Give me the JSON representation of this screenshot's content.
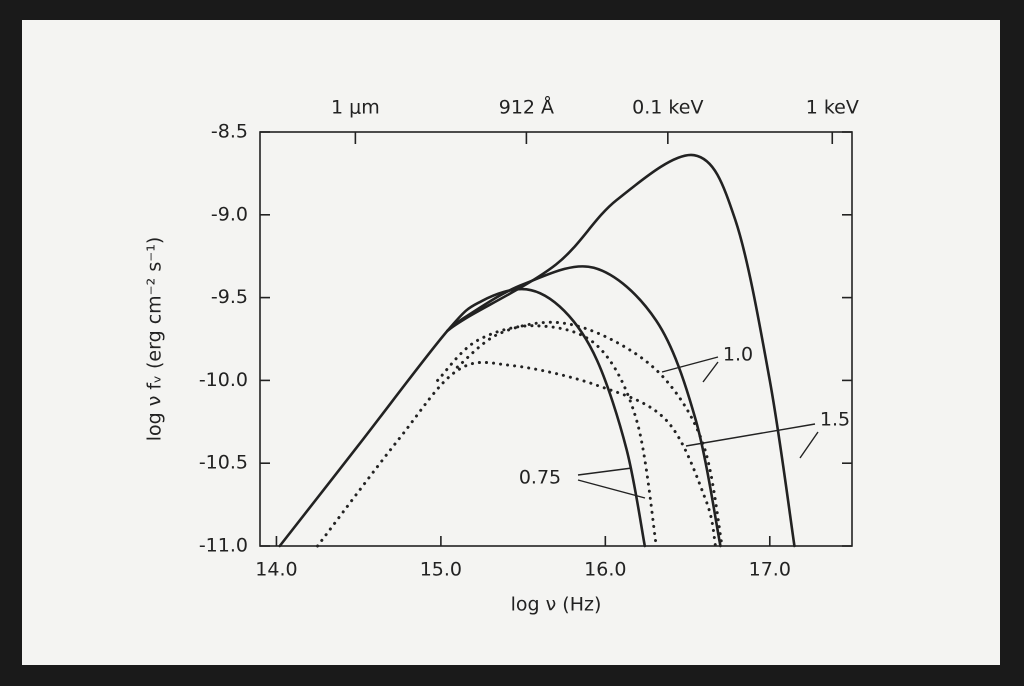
{
  "chart_data": {
    "type": "line",
    "xlabel": "log ν (Hz)",
    "ylabel": "log ν fᵥ (erg cm⁻² s⁻¹)",
    "xlim": [
      13.9,
      17.5
    ],
    "ylim": [
      -11.0,
      -8.5
    ],
    "xticks": [
      {
        "value": 14,
        "label": "14.0"
      },
      {
        "value": 15,
        "label": "15.0"
      },
      {
        "value": 16,
        "label": "16.0"
      },
      {
        "value": 17,
        "label": "17.0"
      }
    ],
    "yticks": [
      -8.5,
      {
        "value": -9,
        "label": "-9.0"
      },
      -9.5,
      {
        "value": -10,
        "label": "-10.0"
      },
      -10.5,
      {
        "value": -11,
        "label": "-11.0"
      }
    ],
    "top_xticks": [
      {
        "value": 14.48,
        "label": "1 μm"
      },
      {
        "value": 15.52,
        "label": "912 Å"
      },
      {
        "value": 16.38,
        "label": "0.1 keV"
      },
      {
        "value": 17.38,
        "label": "1 keV"
      }
    ],
    "series": [
      {
        "name": "0.75",
        "color": "#222",
        "style": "solid",
        "x": [
          14.02,
          14.5,
          15.04,
          15.25,
          15.52,
          15.75,
          15.95,
          16.13,
          16.24
        ],
        "values": [
          -11.0,
          -10.39,
          -9.7,
          -9.52,
          -9.45,
          -9.58,
          -9.88,
          -10.42,
          -11.0
        ]
      },
      {
        "name": "1.0",
        "color": "#222",
        "style": "solid",
        "x": [
          15.04,
          15.16,
          15.5,
          15.93,
          16.31,
          16.55,
          16.7
        ],
        "values": [
          -9.7,
          -9.61,
          -9.42,
          -9.32,
          -9.64,
          -10.24,
          -11.0
        ]
      },
      {
        "name": "1.5",
        "color": "#222",
        "style": "solid",
        "x": [
          15.04,
          15.16,
          15.7,
          16.07,
          16.54,
          16.79,
          17.0,
          17.15
        ],
        "values": [
          -9.7,
          -9.62,
          -9.3,
          -8.91,
          -8.64,
          -9.03,
          -10.0,
          -11.0
        ]
      },
      {
        "name": "0.75",
        "color": "#222",
        "style": "dotted",
        "x": [
          14.98,
          15.22,
          15.58,
          15.95,
          16.19,
          16.31
        ],
        "values": [
          -10.0,
          -9.76,
          -9.67,
          -9.79,
          -10.24,
          -11.0
        ]
      },
      {
        "name": "1.0",
        "color": "#222",
        "style": "dotted",
        "x": [
          15.1,
          15.35,
          15.7,
          16.05,
          16.37,
          16.6,
          16.71
        ],
        "values": [
          -9.92,
          -9.72,
          -9.65,
          -9.76,
          -10.0,
          -10.4,
          -11.0
        ]
      },
      {
        "name": "1.5",
        "color": "#222",
        "style": "dotted",
        "x": [
          14.25,
          14.74,
          15.1,
          15.43,
          15.95,
          16.37,
          16.61,
          16.67
        ],
        "values": [
          -11.0,
          -10.36,
          -9.94,
          -9.91,
          -10.03,
          -10.24,
          -10.72,
          -11.0
        ]
      }
    ]
  }
}
